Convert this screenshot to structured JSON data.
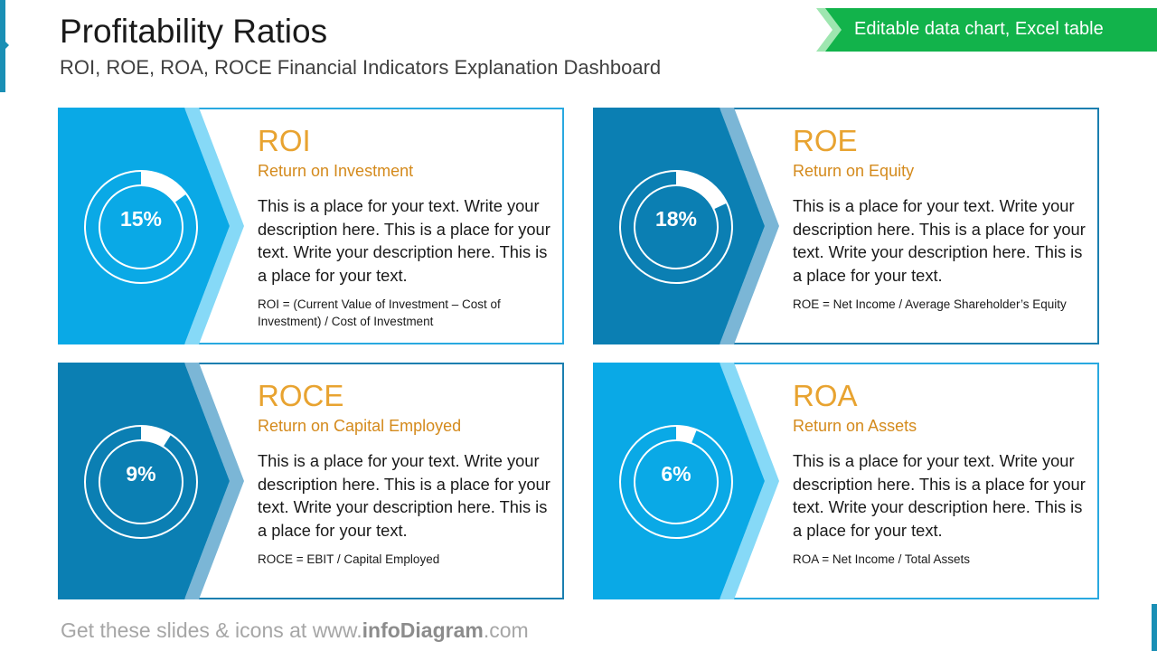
{
  "header": {
    "title": "Profitability Ratios",
    "subtitle": "ROI, ROE, ROA, ROCE Financial Indicators Explanation Dashboard",
    "tag": "Editable data chart, Excel table",
    "tag_color": "#12b34b"
  },
  "cards": [
    {
      "title": "ROI",
      "subtitle": "Return on Investment",
      "percent_label": "15%",
      "value": 15,
      "description": "This is a place for your text. Write your description here. This is a place for your text. Write your description here. This is a place for your text.",
      "formula": "ROI = (Current Value of Investment – Cost of Investment) / Cost of Investment",
      "panel_color": "#0aa9e6",
      "chevron_color": "#86d9f7",
      "border_color": "#29a9e0"
    },
    {
      "title": "ROE",
      "subtitle": "Return on Equity",
      "percent_label": "18%",
      "value": 18,
      "description": "This is a place for your text. Write your description here. This is a place for your text. Write your description here. This is a place for your text.",
      "formula": "ROE = Net Income / Average Shareholder’s Equity",
      "panel_color": "#0b7fb3",
      "chevron_color": "#7bb6d6",
      "border_color": "#1b7fb0"
    },
    {
      "title": "ROCE",
      "subtitle": "Return on Capital Employed",
      "percent_label": "9%",
      "value": 9,
      "description": "This is a place for your text. Write your description here. This is a place for your text. Write your description here. This is a place for your text.",
      "formula": "ROCE = EBIT / Capital Employed",
      "panel_color": "#0b7fb3",
      "chevron_color": "#7bb6d6",
      "border_color": "#1b7fb0"
    },
    {
      "title": "ROA",
      "subtitle": "Return on Assets",
      "percent_label": "6%",
      "value": 6,
      "description": "This is a place for your text. Write your description here. This is a place for your text. Write your description here. This is a place for your text.",
      "formula": "ROA = Net Income / Total Assets",
      "panel_color": "#0aa9e6",
      "chevron_color": "#86d9f7",
      "border_color": "#29a9e0"
    }
  ],
  "footer": {
    "prefix": "Get these slides & icons at www.",
    "brand": "infoDiagram",
    "suffix": ".com"
  }
}
